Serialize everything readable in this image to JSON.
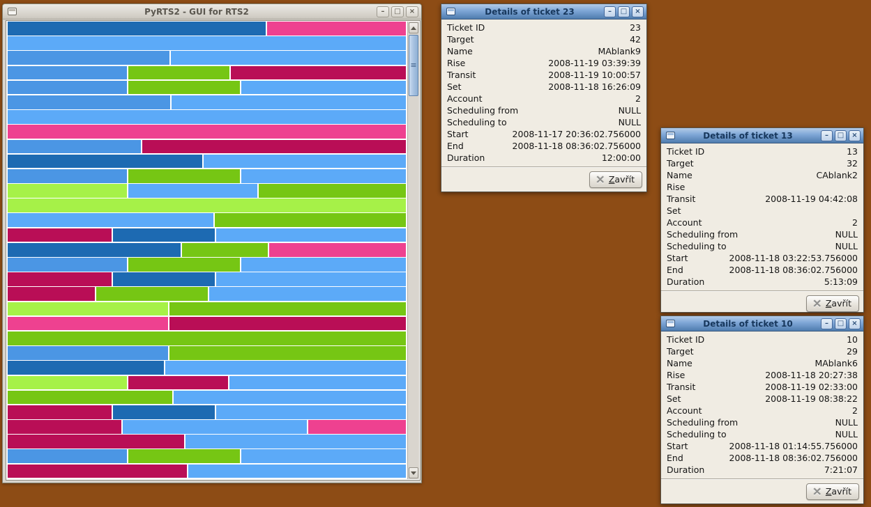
{
  "desktop": {
    "background_color": "#8d4c15"
  },
  "icons": {
    "minimize": "–",
    "maximize": "□",
    "close": "×",
    "close_x": "×",
    "grip": "≡"
  },
  "main_window": {
    "title": "PyRTS2 - GUI for RTS2",
    "chart_data": {
      "type": "bar",
      "subtype": "stacked-horizontal-schedule",
      "title": "",
      "xlabel": "",
      "ylabel": "",
      "legend": "none",
      "grid": "off",
      "colors": {
        "db": "#1d6ab2",
        "mb": "#4b96e4",
        "lb": "#5caaf8",
        "gr": "#76c614",
        "lg": "#a6f148",
        "pk": "#ee4190",
        "cr": "#b90e56"
      },
      "rows": [
        [
          {
            "c": "db",
            "w": 0.65
          },
          {
            "c": "pk",
            "w": 0.35
          }
        ],
        [
          {
            "c": "lb",
            "w": 1
          }
        ],
        [
          {
            "c": "mb",
            "w": 0.407
          },
          {
            "c": "lb",
            "w": 0.593
          }
        ],
        [
          {
            "c": "mb",
            "w": 0.302
          },
          {
            "c": "gr",
            "w": 0.256
          },
          {
            "c": "cr",
            "w": 0.442
          }
        ],
        [
          {
            "c": "mb",
            "w": 0.302
          },
          {
            "c": "gr",
            "w": 0.281
          },
          {
            "c": "lb",
            "w": 0.417
          }
        ],
        [
          {
            "c": "mb",
            "w": 0.41
          },
          {
            "c": "lb",
            "w": 0.59
          }
        ],
        [
          {
            "c": "lb",
            "w": 1
          }
        ],
        [
          {
            "c": "pk",
            "w": 1
          }
        ],
        [
          {
            "c": "mb",
            "w": 0.335
          },
          {
            "c": "cr",
            "w": 0.665
          }
        ],
        [
          {
            "c": "db",
            "w": 0.49
          },
          {
            "c": "lb",
            "w": 0.51
          }
        ],
        [
          {
            "c": "mb",
            "w": 0.302
          },
          {
            "c": "gr",
            "w": 0.281
          },
          {
            "c": "lb",
            "w": 0.417
          }
        ],
        [
          {
            "c": "lg",
            "w": 0.302
          },
          {
            "c": "lb",
            "w": 0.326
          },
          {
            "c": "gr",
            "w": 0.372
          }
        ],
        [
          {
            "c": "lg",
            "w": 1
          }
        ],
        [
          {
            "c": "lb",
            "w": 0.518
          },
          {
            "c": "gr",
            "w": 0.482
          }
        ],
        [
          {
            "c": "cr",
            "w": 0.263
          },
          {
            "c": "db",
            "w": 0.257
          },
          {
            "c": "lb",
            "w": 0.48
          }
        ],
        [
          {
            "c": "db",
            "w": 0.438
          },
          {
            "c": "gr",
            "w": 0.216
          },
          {
            "c": "pk",
            "w": 0.346
          }
        ],
        [
          {
            "c": "mb",
            "w": 0.302
          },
          {
            "c": "gr",
            "w": 0.281
          },
          {
            "c": "lb",
            "w": 0.417
          }
        ],
        [
          {
            "c": "cr",
            "w": 0.263
          },
          {
            "c": "db",
            "w": 0.257
          },
          {
            "c": "lb",
            "w": 0.48
          }
        ],
        [
          {
            "c": "cr",
            "w": 0.221
          },
          {
            "c": "gr",
            "w": 0.281
          },
          {
            "c": "lb",
            "w": 0.498
          }
        ],
        [
          {
            "c": "lg",
            "w": 0.405
          },
          {
            "c": "gr",
            "w": 0.595
          }
        ],
        [
          {
            "c": "pk",
            "w": 0.405
          },
          {
            "c": "cr",
            "w": 0.595
          }
        ],
        [
          {
            "c": "gr",
            "w": 1
          }
        ],
        [
          {
            "c": "mb",
            "w": 0.405
          },
          {
            "c": "gr",
            "w": 0.595
          }
        ],
        [
          {
            "c": "db",
            "w": 0.394
          },
          {
            "c": "lb",
            "w": 0.606
          }
        ],
        [
          {
            "c": "lg",
            "w": 0.302
          },
          {
            "c": "cr",
            "w": 0.251
          },
          {
            "c": "lb",
            "w": 0.447
          }
        ],
        [
          {
            "c": "gr",
            "w": 0.415
          },
          {
            "c": "lb",
            "w": 0.585
          }
        ],
        [
          {
            "c": "cr",
            "w": 0.263
          },
          {
            "c": "db",
            "w": 0.257
          },
          {
            "c": "lb",
            "w": 0.48
          }
        ],
        [
          {
            "c": "cr",
            "w": 0.288
          },
          {
            "c": "lb",
            "w": 0.465
          },
          {
            "c": "pk",
            "w": 0.247
          }
        ],
        [
          {
            "c": "cr",
            "w": 0.444
          },
          {
            "c": "lb",
            "w": 0.556
          }
        ],
        [
          {
            "c": "mb",
            "w": 0.302
          },
          {
            "c": "gr",
            "w": 0.281
          },
          {
            "c": "lb",
            "w": 0.417
          }
        ],
        [
          {
            "c": "cr",
            "w": 0.452
          },
          {
            "c": "lb",
            "w": 0.548
          }
        ],
        [
          {
            "c": "mb",
            "w": 0.406
          },
          {
            "c": "lb",
            "w": 0.594
          }
        ]
      ]
    }
  },
  "dialogs": [
    {
      "title": "Details of ticket 23",
      "fields": [
        {
          "label": "Ticket ID",
          "value": "23"
        },
        {
          "label": "Target",
          "value": "42"
        },
        {
          "label": "Name",
          "value": "MAblank9"
        },
        {
          "label": "Rise",
          "value": "2008-11-19 03:39:39"
        },
        {
          "label": "Transit",
          "value": "2008-11-19 10:00:57"
        },
        {
          "label": "Set",
          "value": "2008-11-18 16:26:09"
        },
        {
          "label": "Account",
          "value": "2"
        },
        {
          "label": "Scheduling from",
          "value": "NULL"
        },
        {
          "label": "Scheduling to",
          "value": "NULL"
        },
        {
          "label": "Start",
          "value": "2008-11-17 20:36:02.756000"
        },
        {
          "label": "End",
          "value": "2008-11-18 08:36:02.756000"
        },
        {
          "label": "Duration",
          "value": "12:00:00"
        }
      ],
      "close_button": {
        "accel": "Z",
        "rest": "avřít"
      }
    },
    {
      "title": "Details of ticket 13",
      "fields": [
        {
          "label": "Ticket ID",
          "value": "13"
        },
        {
          "label": "Target",
          "value": "32"
        },
        {
          "label": "Name",
          "value": "CAblank2"
        },
        {
          "label": "Rise",
          "value": ""
        },
        {
          "label": "Transit",
          "value": "2008-11-19 04:42:08"
        },
        {
          "label": "Set",
          "value": ""
        },
        {
          "label": "Account",
          "value": "2"
        },
        {
          "label": "Scheduling from",
          "value": "NULL"
        },
        {
          "label": "Scheduling to",
          "value": "NULL"
        },
        {
          "label": "Start",
          "value": "2008-11-18 03:22:53.756000"
        },
        {
          "label": "End",
          "value": "2008-11-18 08:36:02.756000"
        },
        {
          "label": "Duration",
          "value": "5:13:09"
        }
      ],
      "close_button": {
        "accel": "Z",
        "rest": "avřít"
      }
    },
    {
      "title": "Details of ticket 10",
      "fields": [
        {
          "label": "Ticket ID",
          "value": "10"
        },
        {
          "label": "Target",
          "value": "29"
        },
        {
          "label": "Name",
          "value": "MAblank6"
        },
        {
          "label": "Rise",
          "value": "2008-11-18 20:27:38"
        },
        {
          "label": "Transit",
          "value": "2008-11-19 02:33:00"
        },
        {
          "label": "Set",
          "value": "2008-11-19 08:38:22"
        },
        {
          "label": "Account",
          "value": "2"
        },
        {
          "label": "Scheduling from",
          "value": "NULL"
        },
        {
          "label": "Scheduling to",
          "value": "NULL"
        },
        {
          "label": "Start",
          "value": "2008-11-18 01:14:55.756000"
        },
        {
          "label": "End",
          "value": "2008-11-18 08:36:02.756000"
        },
        {
          "label": "Duration",
          "value": "7:21:07"
        }
      ],
      "close_button": {
        "accel": "Z",
        "rest": "avřít"
      }
    }
  ]
}
